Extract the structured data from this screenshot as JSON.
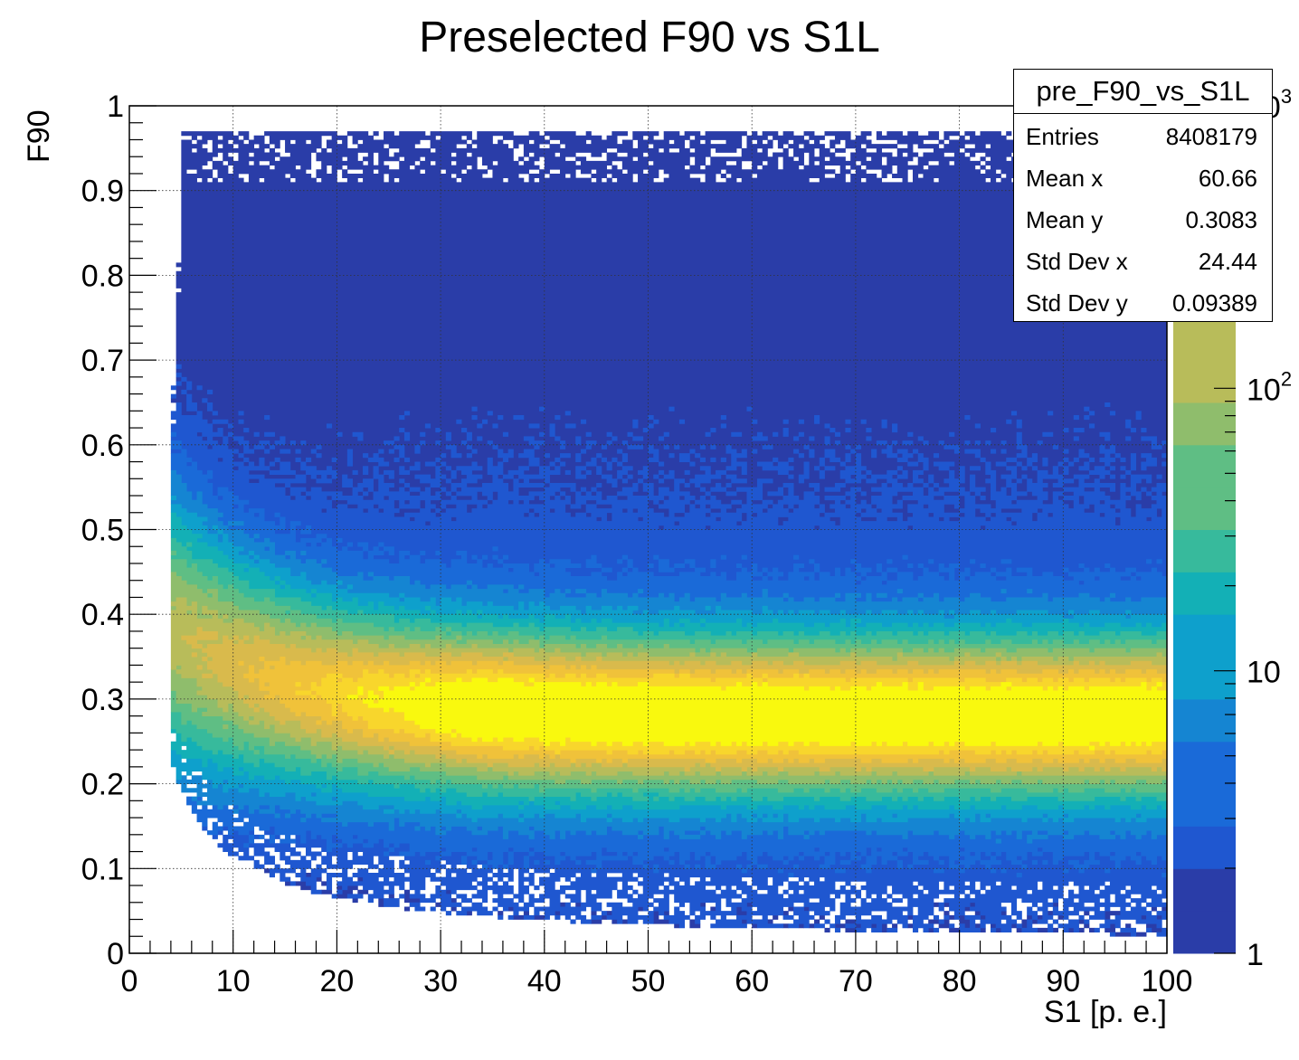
{
  "chart_data": {
    "type": "heatmap",
    "title": "Preselected F90 vs S1L",
    "xlabel": "S1 [p. e.]",
    "ylabel": "F90",
    "xlim": [
      0,
      100
    ],
    "ylim": [
      0,
      1
    ],
    "x_ticks": [
      "0",
      "10",
      "20",
      "30",
      "40",
      "50",
      "60",
      "70",
      "80",
      "90",
      "100"
    ],
    "y_ticks": [
      "0",
      "0.1",
      "0.2",
      "0.3",
      "0.4",
      "0.5",
      "0.6",
      "0.7",
      "0.8",
      "0.9",
      "1"
    ],
    "grid": true,
    "z_scale": "log",
    "zlim": [
      1,
      1000
    ],
    "z_ticks": [
      {
        "value": 1,
        "label": "1"
      },
      {
        "value": 10,
        "label": "10"
      },
      {
        "value": 100,
        "label": "10",
        "exponent": "2"
      },
      {
        "value": 1000,
        "label": "10",
        "exponent": "3"
      }
    ],
    "palette": [
      "#2a3da8",
      "#1f57d0",
      "#1a6ad8",
      "#1585d2",
      "#0ea0cc",
      "#13b0b6",
      "#37ba9c",
      "#5fbe84",
      "#8fbd6c",
      "#b8bc5a",
      "#d9ba4c",
      "#f0c23a",
      "#f8d62c",
      "#f9f90e"
    ],
    "stats": {
      "name": "pre_F90_vs_S1L",
      "entries": {
        "label": "Entries",
        "value": "8408179"
      },
      "mean_x": {
        "label": "Mean x",
        "value": "60.66"
      },
      "mean_y": {
        "label": "Mean y",
        "value": "0.3083"
      },
      "std_x": {
        "label": "Std Dev x",
        "value": "24.44"
      },
      "std_y": {
        "label": "Std Dev y",
        "value": "0.09389"
      }
    },
    "density_model": {
      "band_center_f90": 0.28,
      "band_sigma_f90": 0.065,
      "upper_edge_f90": 0.97,
      "lower_edge_f90_at_high_s1": 0.02,
      "min_s1": 4,
      "peak_log10_counts": 3
    }
  }
}
